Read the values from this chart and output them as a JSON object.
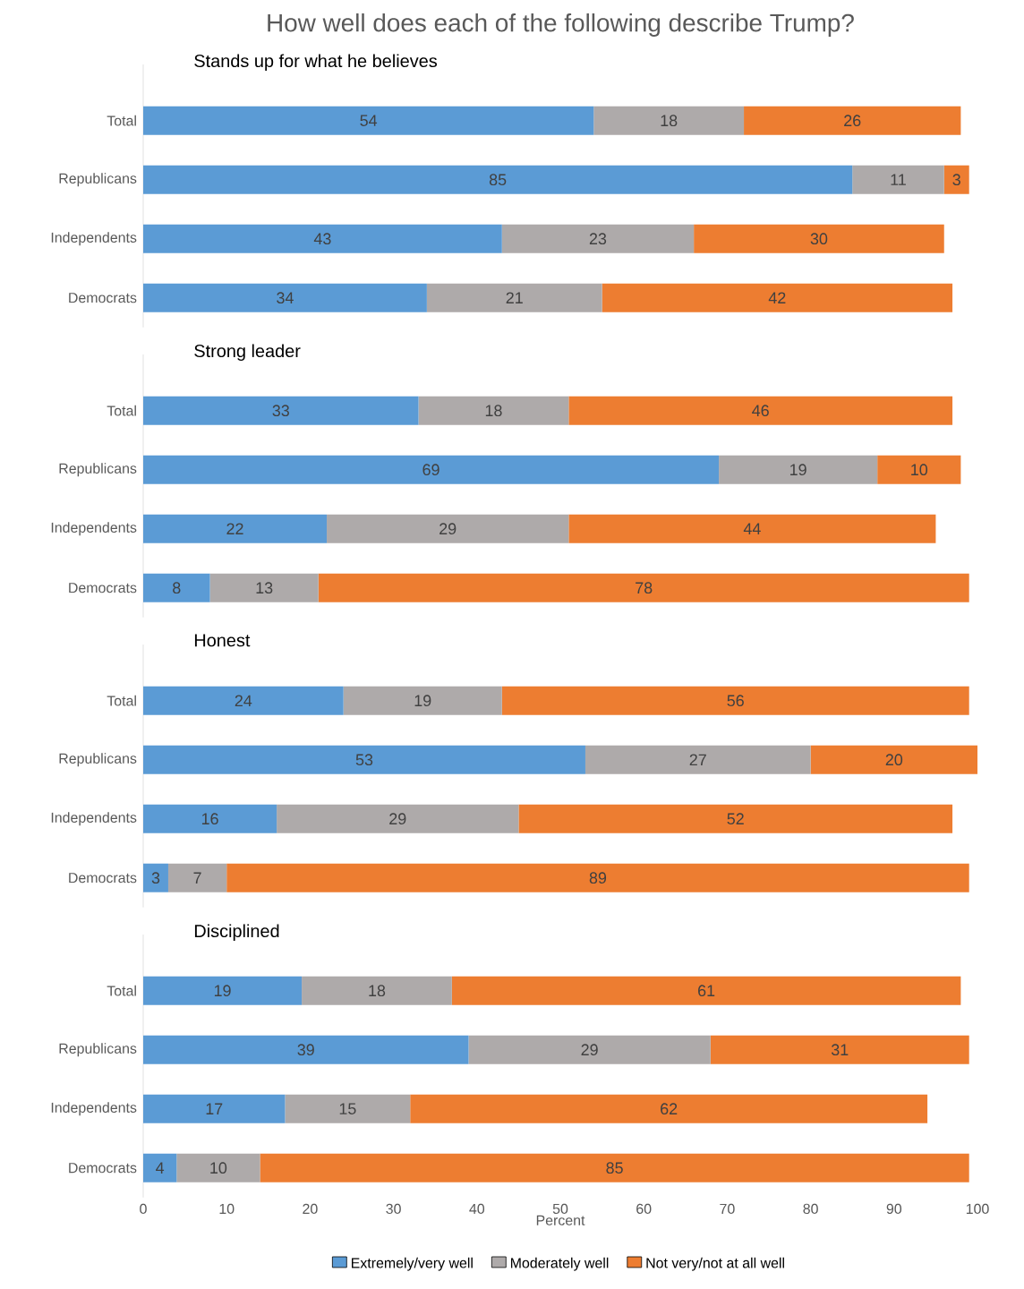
{
  "chart_data": [
    {
      "type": "bar",
      "orientation": "horizontal",
      "stacked": true,
      "title": "How well does each of the following describe Trump?",
      "subtitle": "Stands up for what he believes",
      "categories": [
        "Total",
        "Republicans",
        "Independents",
        "Democrats"
      ],
      "tick_labels": "y",
      "data_labels": true,
      "series": [
        {
          "color": "#5b9bd5",
          "values": [
            54,
            85,
            43,
            34
          ]
        },
        {
          "color": "#aeaaaa",
          "values": [
            18,
            11,
            23,
            21
          ]
        },
        {
          "color": "#ed7d31",
          "values": [
            26,
            3,
            30,
            42
          ]
        }
      ]
    },
    {
      "type": "bar",
      "orientation": "horizontal",
      "stacked": true,
      "title": "Strong leader",
      "categories": [
        "Total",
        "Republicans",
        "Independents",
        "Democrats"
      ],
      "tick_labels": "y",
      "data_labels": true,
      "series": [
        {
          "color": "#5b9bd5",
          "values": [
            33,
            69,
            22,
            8
          ]
        },
        {
          "color": "#aeaaaa",
          "values": [
            18,
            19,
            29,
            13
          ]
        },
        {
          "color": "#ed7d31",
          "values": [
            46,
            10,
            44,
            78
          ]
        }
      ]
    },
    {
      "type": "bar",
      "orientation": "horizontal",
      "stacked": true,
      "title": "Honest",
      "categories": [
        "Total",
        "Republicans",
        "Independents",
        "Democrats"
      ],
      "tick_labels": "y",
      "data_labels": true,
      "series": [
        {
          "color": "#5b9bd5",
          "values": [
            24,
            53,
            16,
            3
          ]
        },
        {
          "color": "#aeaaaa",
          "values": [
            19,
            27,
            29,
            7
          ]
        },
        {
          "color": "#ed7d31",
          "values": [
            56,
            20,
            52,
            89
          ]
        }
      ]
    },
    {
      "type": "bar",
      "orientation": "horizontal",
      "stacked": true,
      "title": "Disciplined",
      "categories": [
        "Total",
        "Republicans",
        "Independents",
        "Democrats"
      ],
      "xlim": [
        0,
        100
      ],
      "xticks": [
        0,
        10,
        20,
        30,
        40,
        50,
        60,
        70,
        80,
        90,
        100
      ],
      "xlabel": "Percent",
      "legend": "bottom",
      "data_labels": true,
      "series": [
        {
          "name": "Extremely/very well",
          "color": "#5b9bd5",
          "values": [
            19,
            39,
            17,
            4
          ]
        },
        {
          "name": "Moderately well",
          "color": "#aeaaaa",
          "values": [
            18,
            29,
            15,
            10
          ]
        },
        {
          "name": "Not very/not at all well",
          "color": "#ed7d31",
          "values": [
            61,
            31,
            62,
            85
          ]
        }
      ]
    }
  ]
}
